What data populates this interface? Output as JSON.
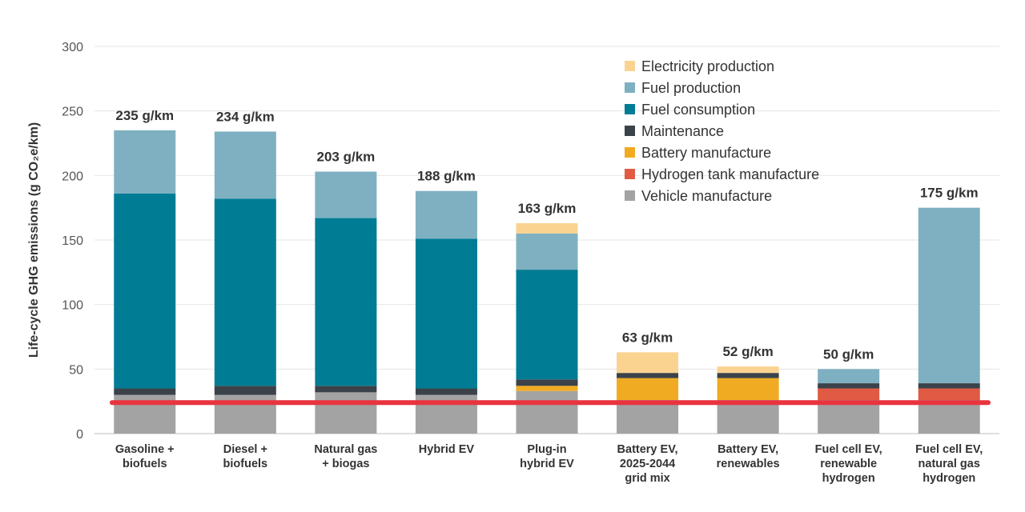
{
  "chart_data": {
    "type": "bar",
    "stacked": true,
    "title": "",
    "xlabel": "",
    "ylabel": "Life-cycle GHG emissions (g CO₂e/km)",
    "ylim": [
      0,
      300
    ],
    "yticks": [
      0,
      50,
      100,
      150,
      200,
      250,
      300
    ],
    "grid": true,
    "legend_position": "top-right",
    "categories": [
      [
        "Gasoline +",
        "biofuels"
      ],
      [
        "Diesel +",
        "biofuels"
      ],
      [
        "Natural gas",
        "+ biogas"
      ],
      [
        "Hybrid EV"
      ],
      [
        "Plug-in",
        "hybrid EV"
      ],
      [
        "Battery EV,",
        "2025-2044",
        "grid mix"
      ],
      [
        "Battery EV,",
        "renewables"
      ],
      [
        "Fuel cell EV,",
        "renewable",
        "hydrogen"
      ],
      [
        "Fuel cell EV,",
        "natural gas",
        "hydrogen"
      ]
    ],
    "totals": [
      "235 g/km",
      "234 g/km",
      "203 g/km",
      "188 g/km",
      "163 g/km",
      "63 g/km",
      "52 g/km",
      "50 g/km",
      "175 g/km"
    ],
    "series": [
      {
        "name": "Vehicle manufacture",
        "color": "#a3a3a3",
        "values": [
          30,
          30,
          32,
          30,
          33,
          26,
          26,
          26,
          26
        ]
      },
      {
        "name": "Hydrogen tank manufacture",
        "color": "#e05a44",
        "values": [
          0,
          0,
          0,
          0,
          0,
          0,
          0,
          9,
          9
        ]
      },
      {
        "name": "Battery manufacture",
        "color": "#f0ab22",
        "values": [
          0,
          0,
          0,
          0,
          4,
          17,
          17,
          0,
          0
        ]
      },
      {
        "name": "Maintenance",
        "color": "#3b4249",
        "values": [
          5,
          7,
          5,
          5,
          5,
          4,
          4,
          4,
          4
        ]
      },
      {
        "name": "Fuel consumption",
        "color": "#007c95",
        "values": [
          151,
          145,
          130,
          116,
          85,
          0,
          0,
          0,
          0
        ]
      },
      {
        "name": "Fuel production",
        "color": "#7fb0c1",
        "values": [
          49,
          52,
          36,
          37,
          28,
          0,
          0,
          11,
          136
        ]
      },
      {
        "name": "Electricity production",
        "color": "#fad391",
        "values": [
          0,
          0,
          0,
          0,
          8,
          16,
          5,
          0,
          0
        ]
      }
    ],
    "legend_order": [
      "Electricity production",
      "Fuel production",
      "Fuel consumption",
      "Maintenance",
      "Battery manufacture",
      "Hydrogen tank manufacture",
      "Vehicle manufacture"
    ],
    "reference_line": {
      "value": 24,
      "color": "#e8343f"
    }
  }
}
